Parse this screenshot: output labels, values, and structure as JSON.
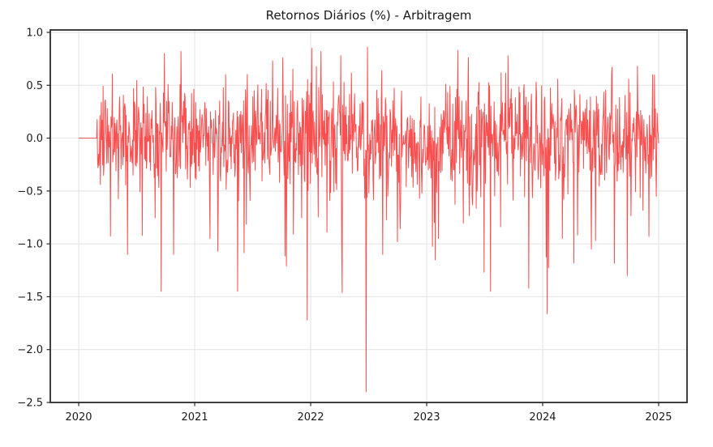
{
  "figure": {
    "bg": "#ffffff",
    "spine_color": "#2b2b2b",
    "grid_color": "#e2e2e2",
    "tick_color": "#262626",
    "label_color": "#1a1a1a"
  },
  "chart_data": {
    "type": "line",
    "title": "Retornos Diários (%) - Arbitragem",
    "xlabel": "",
    "ylabel": "",
    "legend": false,
    "grid": true,
    "xlim": [
      2019.755,
      2025.245
    ],
    "ylim": [
      -2.5,
      1.023
    ],
    "x_ticks": [
      2020,
      2021,
      2022,
      2023,
      2024,
      2025
    ],
    "x_tick_labels": [
      "2020",
      "2021",
      "2022",
      "2023",
      "2024",
      "2025"
    ],
    "y_ticks": [
      1.0,
      0.5,
      0.0,
      -0.5,
      -1.0,
      -1.5,
      -2.0,
      -2.5
    ],
    "y_tick_labels": [
      "1.0",
      "0.5",
      "0.0",
      "−0.5",
      "−1.0",
      "−1.5",
      "−2.0",
      "−2.5"
    ],
    "line_color": "#f73131",
    "line_alpha": 0.85,
    "line_width": 1,
    "series": [
      {
        "name": "Retornos diários (%)",
        "unit": "%",
        "t_start": 2020.0,
        "t_end": 2025.0,
        "points_per_year": 252,
        "flat_zero_until": 2020.155,
        "noise_std": 0.26,
        "neg_tail_prob": 0.016,
        "neg_tail_base": 0.72,
        "neg_tail_span": 0.55,
        "seed": 1337,
        "extremes": [
          {
            "t": 2020.42,
            "v": -1.1
          },
          {
            "t": 2020.55,
            "v": -0.92
          },
          {
            "t": 2020.71,
            "v": -1.45
          },
          {
            "t": 2020.74,
            "v": 0.8
          },
          {
            "t": 2020.82,
            "v": -1.1
          },
          {
            "t": 2020.88,
            "v": 0.82
          },
          {
            "t": 2021.13,
            "v": -0.95
          },
          {
            "t": 2021.2,
            "v": -1.07
          },
          {
            "t": 2021.37,
            "v": -1.45
          },
          {
            "t": 2021.67,
            "v": 0.73
          },
          {
            "t": 2021.76,
            "v": 0.76
          },
          {
            "t": 2021.79,
            "v": -1.21
          },
          {
            "t": 2021.97,
            "v": -1.72
          },
          {
            "t": 2022.01,
            "v": 0.85
          },
          {
            "t": 2022.26,
            "v": 0.78
          },
          {
            "t": 2022.27,
            "v": -1.46
          },
          {
            "t": 2022.48,
            "v": -2.4
          },
          {
            "t": 2022.49,
            "v": 0.86
          },
          {
            "t": 2022.62,
            "v": -1.1
          },
          {
            "t": 2022.75,
            "v": -0.98
          },
          {
            "t": 2023.1,
            "v": -0.95
          },
          {
            "t": 2023.27,
            "v": 0.83
          },
          {
            "t": 2023.55,
            "v": -1.45
          },
          {
            "t": 2023.7,
            "v": 0.78
          },
          {
            "t": 2023.88,
            "v": -1.42
          },
          {
            "t": 2024.04,
            "v": -1.66
          },
          {
            "t": 2024.17,
            "v": -0.95
          },
          {
            "t": 2024.27,
            "v": -1.18
          },
          {
            "t": 2024.42,
            "v": -1.05
          },
          {
            "t": 2024.6,
            "v": 0.67
          },
          {
            "t": 2024.73,
            "v": -1.3
          },
          {
            "t": 2024.95,
            "v": 0.6
          }
        ]
      }
    ],
    "stats": {
      "max_value": 0.86,
      "min_value": -2.4,
      "typical_range": [
        -0.6,
        0.6
      ]
    }
  }
}
